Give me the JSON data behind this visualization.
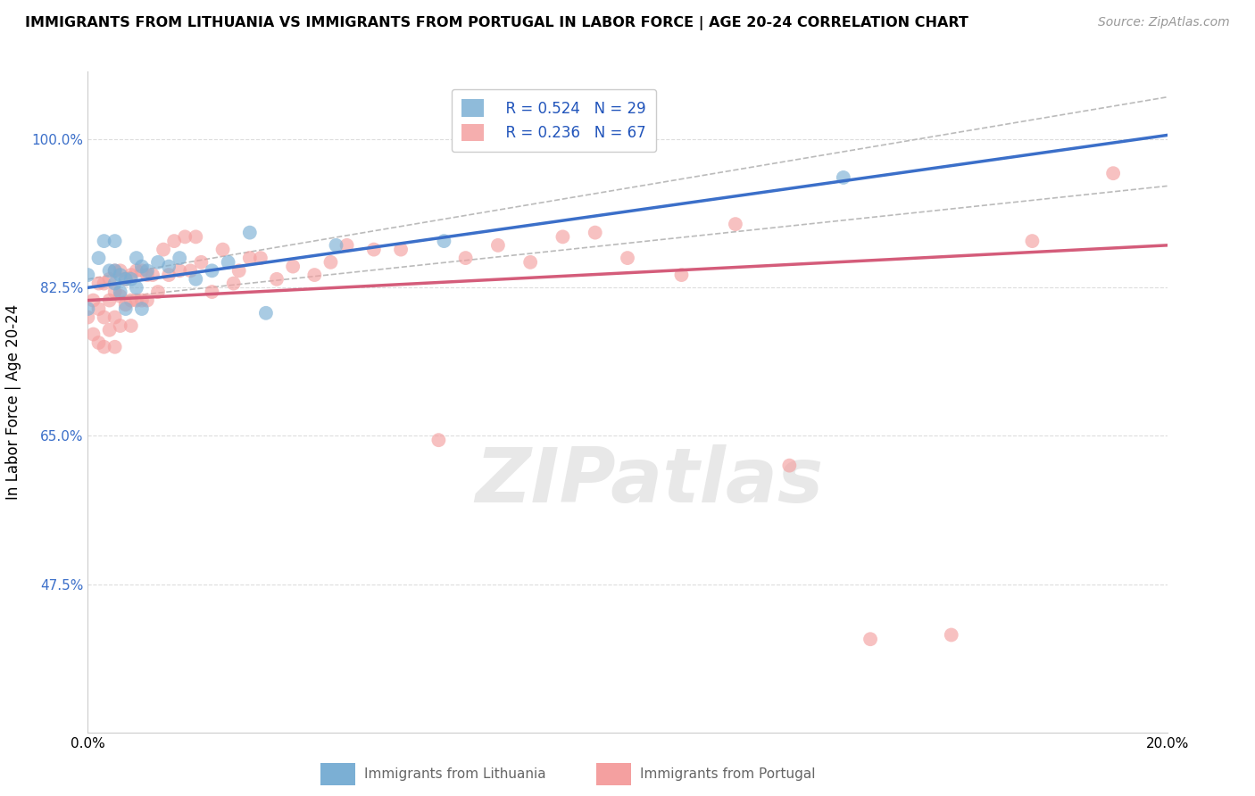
{
  "title": "IMMIGRANTS FROM LITHUANIA VS IMMIGRANTS FROM PORTUGAL IN LABOR FORCE | AGE 20-24 CORRELATION CHART",
  "source": "Source: ZipAtlas.com",
  "ylabel": "In Labor Force | Age 20-24",
  "xlim": [
    0.0,
    0.2
  ],
  "ylim": [
    0.3,
    1.08
  ],
  "yticks": [
    0.475,
    0.65,
    0.825,
    1.0
  ],
  "ytick_labels": [
    "47.5%",
    "65.0%",
    "82.5%",
    "100.0%"
  ],
  "xticks": [
    0.0,
    0.05,
    0.1,
    0.15,
    0.2
  ],
  "xtick_labels": [
    "0.0%",
    "",
    "",
    "",
    "20.0%"
  ],
  "legend_R_lithuania": "R = 0.524",
  "legend_N_lithuania": "N = 29",
  "legend_R_portugal": "R = 0.236",
  "legend_N_portugal": "N = 67",
  "color_lithuania": "#7BAFD4",
  "color_portugal": "#F4A0A0",
  "color_trend_lithuania": "#3B6FC9",
  "color_trend_portugal": "#D45C7A",
  "color_ci": "#BBBBBB",
  "watermark_text": "ZIPatlas",
  "lithuania_x": [
    0.0,
    0.0,
    0.002,
    0.003,
    0.004,
    0.005,
    0.005,
    0.005,
    0.006,
    0.006,
    0.007,
    0.007,
    0.008,
    0.009,
    0.009,
    0.01,
    0.01,
    0.011,
    0.013,
    0.015,
    0.017,
    0.02,
    0.023,
    0.026,
    0.03,
    0.033,
    0.046,
    0.066,
    0.14
  ],
  "lithuania_y": [
    0.84,
    0.8,
    0.86,
    0.88,
    0.845,
    0.88,
    0.845,
    0.83,
    0.84,
    0.82,
    0.835,
    0.8,
    0.835,
    0.825,
    0.86,
    0.85,
    0.8,
    0.845,
    0.855,
    0.85,
    0.86,
    0.835,
    0.845,
    0.855,
    0.89,
    0.795,
    0.875,
    0.88,
    0.955
  ],
  "portugal_x": [
    0.0,
    0.001,
    0.001,
    0.002,
    0.002,
    0.002,
    0.003,
    0.003,
    0.003,
    0.004,
    0.004,
    0.004,
    0.005,
    0.005,
    0.005,
    0.005,
    0.006,
    0.006,
    0.006,
    0.007,
    0.007,
    0.008,
    0.008,
    0.008,
    0.009,
    0.009,
    0.01,
    0.01,
    0.011,
    0.011,
    0.012,
    0.013,
    0.014,
    0.015,
    0.016,
    0.017,
    0.018,
    0.019,
    0.02,
    0.021,
    0.023,
    0.025,
    0.027,
    0.028,
    0.03,
    0.032,
    0.035,
    0.038,
    0.042,
    0.045,
    0.048,
    0.053,
    0.058,
    0.065,
    0.07,
    0.076,
    0.082,
    0.088,
    0.094,
    0.1,
    0.11,
    0.12,
    0.13,
    0.145,
    0.16,
    0.175,
    0.19
  ],
  "portugal_y": [
    0.79,
    0.81,
    0.77,
    0.83,
    0.8,
    0.76,
    0.83,
    0.79,
    0.755,
    0.835,
    0.81,
    0.775,
    0.845,
    0.82,
    0.79,
    0.755,
    0.845,
    0.815,
    0.78,
    0.835,
    0.805,
    0.84,
    0.81,
    0.78,
    0.845,
    0.81,
    0.845,
    0.81,
    0.84,
    0.81,
    0.84,
    0.82,
    0.87,
    0.84,
    0.88,
    0.845,
    0.885,
    0.845,
    0.885,
    0.855,
    0.82,
    0.87,
    0.83,
    0.845,
    0.86,
    0.86,
    0.835,
    0.85,
    0.84,
    0.855,
    0.875,
    0.87,
    0.87,
    0.645,
    0.86,
    0.875,
    0.855,
    0.885,
    0.89,
    0.86,
    0.84,
    0.9,
    0.615,
    0.41,
    0.415,
    0.88,
    0.96
  ],
  "background_color": "#FFFFFF",
  "grid_color": "#DDDDDD"
}
